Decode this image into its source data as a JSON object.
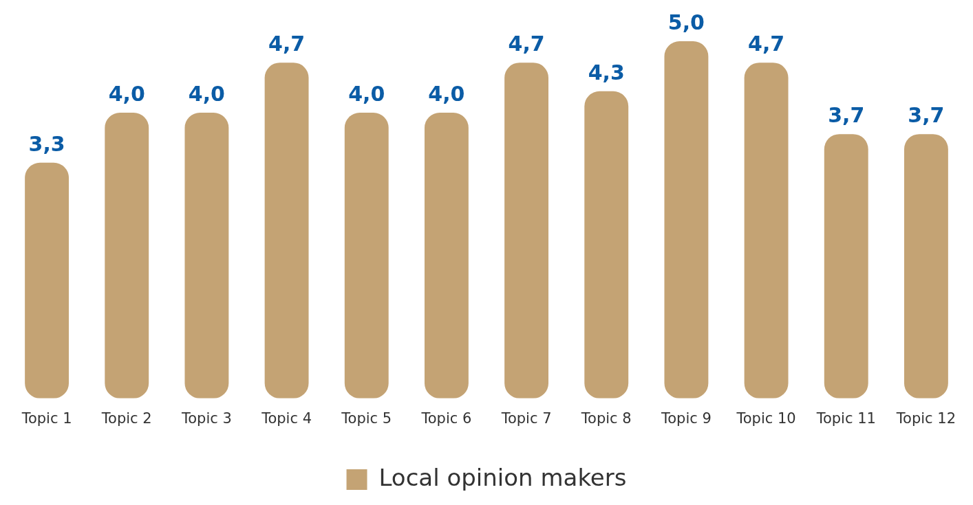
{
  "chart_data": {
    "type": "bar",
    "categories": [
      "Topic 1",
      "Topic 2",
      "Topic 3",
      "Topic 4",
      "Topic 5",
      "Topic 6",
      "Topic 7",
      "Topic 8",
      "Topic 9",
      "Topic 10",
      "Topic 11",
      "Topic 12"
    ],
    "series": [
      {
        "name": "Local opinion makers",
        "color": "#c4a374",
        "values": [
          3.3,
          4.0,
          4.0,
          4.7,
          4.0,
          4.0,
          4.7,
          4.3,
          5.0,
          4.7,
          3.7,
          3.7
        ],
        "value_labels": [
          "3,3",
          "4,0",
          "4,0",
          "4,7",
          "4,0",
          "4,0",
          "4,7",
          "4,3",
          "5,0",
          "4,7",
          "3,7",
          "3,7"
        ]
      }
    ],
    "legend": "bottom",
    "grid": false
  }
}
